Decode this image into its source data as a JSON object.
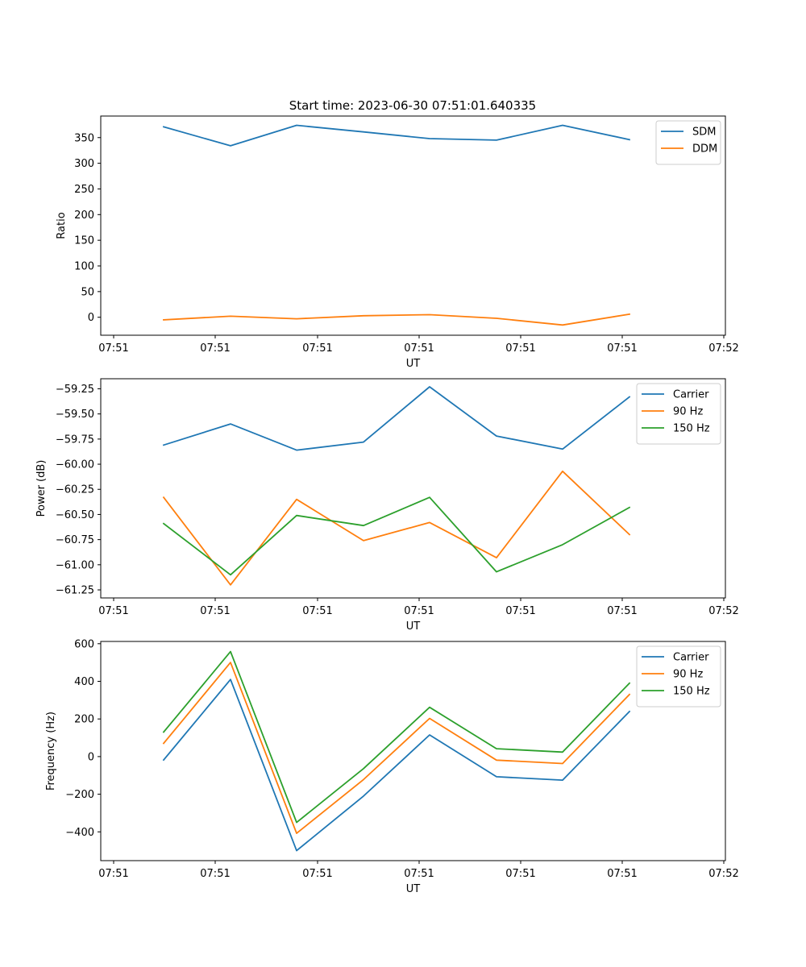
{
  "figure_title": "Start time: 2023-06-30 07:51:01.640335",
  "chart_data": [
    {
      "type": "line",
      "title": "Start time: 2023-06-30 07:51:01.640335",
      "xlabel": "UT",
      "ylabel": "Ratio",
      "x_tick_labels": [
        "07:51",
        "07:51",
        "07:51",
        "07:51",
        "07:51",
        "07:51",
        "07:52"
      ],
      "ylim": [
        -35,
        392
      ],
      "yticks": [
        0,
        50,
        100,
        150,
        200,
        250,
        300,
        350
      ],
      "y_tick_labels": [
        "0",
        "50",
        "100",
        "150",
        "200",
        "250",
        "300",
        "350"
      ],
      "legend_position": "top-right",
      "grid": false,
      "series": [
        {
          "name": "SDM",
          "color": "#1f77b4",
          "values": [
            371,
            334,
            374,
            361,
            348,
            345,
            374,
            346
          ]
        },
        {
          "name": "DDM",
          "color": "#ff7f0e",
          "values": [
            -5,
            2,
            -3,
            3,
            5,
            -2,
            -15,
            6
          ]
        }
      ]
    },
    {
      "type": "line",
      "title": "",
      "xlabel": "UT",
      "ylabel": "Power (dB)",
      "x_tick_labels": [
        "07:51",
        "07:51",
        "07:51",
        "07:51",
        "07:51",
        "07:51",
        "07:52"
      ],
      "ylim": [
        -61.33,
        -59.15
      ],
      "yticks": [
        -61.25,
        -61.0,
        -60.75,
        -60.5,
        -60.25,
        -60.0,
        -59.75,
        -59.5,
        -59.25
      ],
      "y_tick_labels": [
        "−61.25",
        "−61.00",
        "−60.75",
        "−60.50",
        "−60.25",
        "−60.00",
        "−59.75",
        "−59.50",
        "−59.25"
      ],
      "legend_position": "top-right",
      "grid": false,
      "series": [
        {
          "name": "Carrier",
          "color": "#1f77b4",
          "values": [
            -59.81,
            -59.6,
            -59.86,
            -59.78,
            -59.23,
            -59.72,
            -59.85,
            -59.33
          ]
        },
        {
          "name": "90 Hz",
          "color": "#ff7f0e",
          "values": [
            -60.33,
            -61.2,
            -60.35,
            -60.76,
            -60.58,
            -60.93,
            -60.07,
            -60.7
          ]
        },
        {
          "name": "150 Hz",
          "color": "#2ca02c",
          "values": [
            -60.59,
            -61.1,
            -60.51,
            -60.61,
            -60.33,
            -61.07,
            -60.8,
            -60.43
          ]
        }
      ]
    },
    {
      "type": "line",
      "title": "",
      "xlabel": "UT",
      "ylabel": "Frequency (Hz)",
      "x_tick_labels": [
        "07:51",
        "07:51",
        "07:51",
        "07:51",
        "07:51",
        "07:51",
        "07:52"
      ],
      "ylim": [
        -553,
        612
      ],
      "yticks": [
        -400,
        -200,
        0,
        200,
        400,
        600
      ],
      "y_tick_labels": [
        "−400",
        "−200",
        "0",
        "200",
        "400",
        "600"
      ],
      "legend_position": "top-right",
      "grid": false,
      "series": [
        {
          "name": "Carrier",
          "color": "#1f77b4",
          "values": [
            -18,
            410,
            -500,
            -210,
            115,
            -107,
            -125,
            240
          ]
        },
        {
          "name": "90 Hz",
          "color": "#ff7f0e",
          "values": [
            70,
            500,
            -408,
            -122,
            203,
            -19,
            -37,
            330
          ]
        },
        {
          "name": "150 Hz",
          "color": "#2ca02c",
          "values": [
            130,
            558,
            -350,
            -64,
            262,
            42,
            24,
            390
          ]
        }
      ]
    }
  ]
}
